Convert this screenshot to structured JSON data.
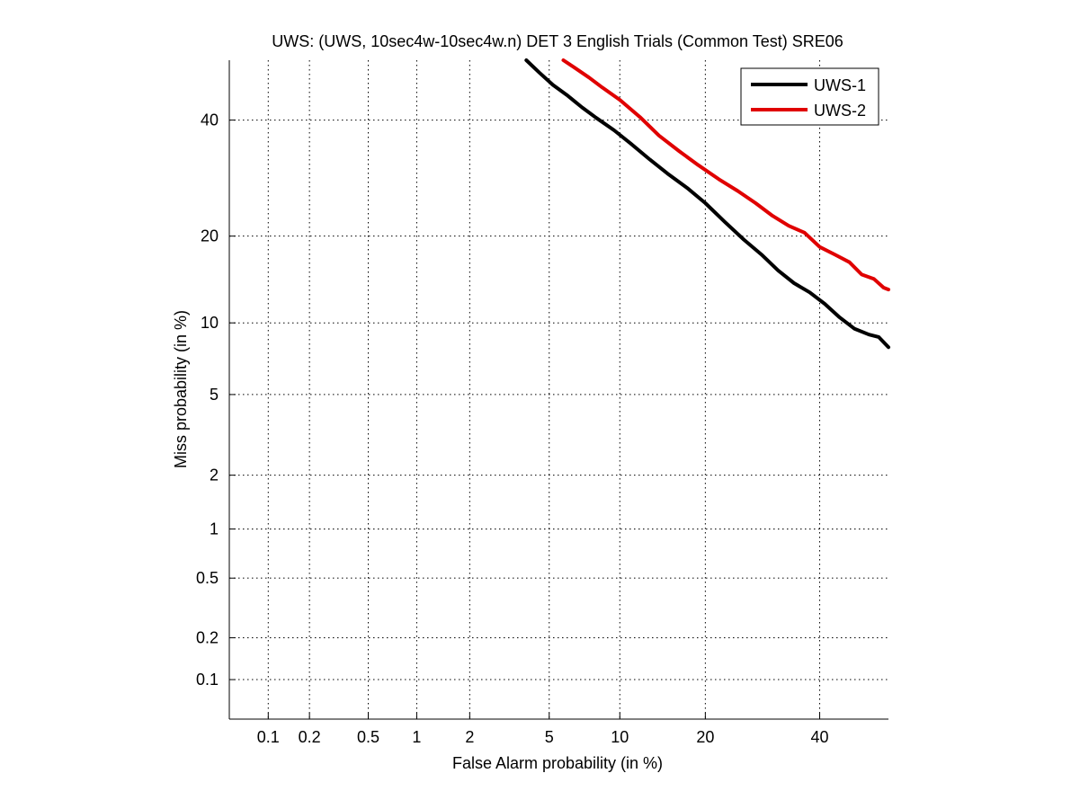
{
  "chart_data": {
    "type": "line",
    "title": "UWS: (UWS, 10sec4w-10sec4w.n) DET 3 English Trials (Common Test) SRE06",
    "xlabel": "False Alarm probability (in %)",
    "ylabel": "Miss probability (in %)",
    "x_scale": "probit",
    "y_scale": "probit",
    "xlim": [
      0.05,
      54
    ],
    "ylim": [
      0.05,
      52
    ],
    "x_ticks": [
      0.1,
      0.2,
      0.5,
      1,
      2,
      5,
      10,
      20,
      40
    ],
    "x_tick_labels": [
      "0.1",
      "0.2",
      "0.5",
      "1",
      "2",
      "5",
      "10",
      "20",
      "40"
    ],
    "y_ticks": [
      0.1,
      0.2,
      0.5,
      1,
      2,
      5,
      10,
      20,
      40
    ],
    "y_tick_labels": [
      "0.1",
      "0.2",
      "0.5",
      "1",
      "2",
      "5",
      "10",
      "20",
      "40"
    ],
    "grid": true,
    "legend_position": "top-right",
    "series": [
      {
        "name": "UWS-1",
        "color": "#000000",
        "x": [
          3.9,
          4.5,
          5.2,
          6.0,
          7.0,
          8.0,
          9.5,
          11.0,
          13.0,
          15.0,
          17.5,
          20.0,
          23.0,
          26.0,
          29.0,
          32.0,
          35.0,
          38.0,
          41.0,
          44.0,
          47.0,
          50.0,
          52.0,
          54.0
        ],
        "y": [
          52.0,
          49.5,
          47.0,
          45.0,
          42.5,
          40.5,
          38.0,
          35.5,
          32.5,
          30.0,
          27.5,
          25.0,
          22.0,
          19.5,
          17.5,
          15.5,
          14.0,
          13.0,
          11.8,
          10.5,
          9.5,
          9.0,
          8.8,
          8.0
        ]
      },
      {
        "name": "UWS-2",
        "color": "#e00000",
        "x": [
          5.8,
          6.5,
          7.5,
          8.5,
          10.0,
          12.0,
          14.0,
          16.5,
          19.0,
          22.0,
          25.0,
          28.0,
          31.0,
          34.0,
          37.0,
          40.0,
          43.0,
          46.0,
          48.5,
          51.0,
          53.0,
          54.0
        ],
        "y": [
          52.0,
          50.5,
          48.5,
          46.5,
          44.0,
          40.5,
          37.0,
          34.0,
          31.5,
          29.0,
          27.0,
          25.0,
          23.0,
          21.5,
          20.5,
          18.5,
          17.5,
          16.5,
          15.0,
          14.5,
          13.5,
          13.3
        ]
      }
    ]
  }
}
